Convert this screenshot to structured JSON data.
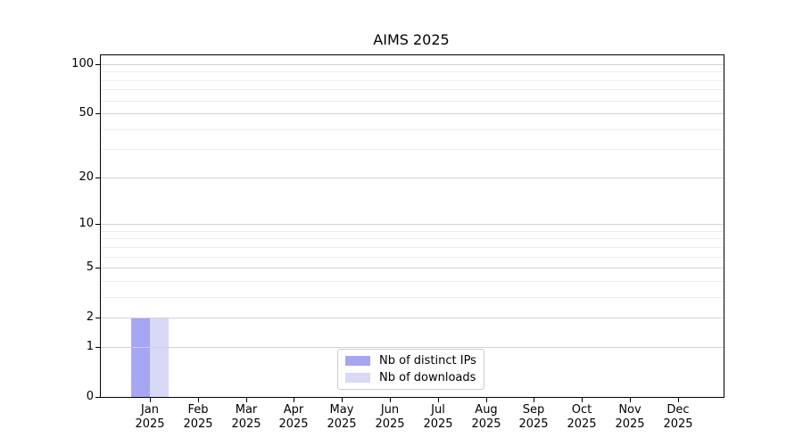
{
  "chart_data": {
    "type": "bar",
    "title": "AIMS 2025",
    "categories": [
      "Jan",
      "Feb",
      "Mar",
      "Apr",
      "May",
      "Jun",
      "Jul",
      "Aug",
      "Sep",
      "Oct",
      "Nov",
      "Dec"
    ],
    "x_tick_year_line": "2025",
    "series": [
      {
        "name": "Nb of distinct IPs",
        "color": "#a6a6f2",
        "values": [
          2,
          0,
          0,
          0,
          0,
          0,
          0,
          0,
          0,
          0,
          0,
          0
        ]
      },
      {
        "name": "Nb of downloads",
        "color": "#d8d8f7",
        "values": [
          2,
          0,
          0,
          0,
          0,
          0,
          0,
          0,
          0,
          0,
          0,
          0
        ]
      }
    ],
    "y_scale": "log1p",
    "ylim": [
      0,
      113
    ],
    "y_major_ticks": [
      0,
      1,
      2,
      5,
      10,
      20,
      50,
      100
    ],
    "y_minor_ticks": [
      3,
      4,
      6,
      7,
      8,
      9,
      30,
      40,
      60,
      70,
      80,
      90
    ],
    "grid": "on",
    "legend_position": "lower center"
  },
  "colors": {
    "axis": "#000000",
    "major_grid": "#d2d2d2",
    "minor_grid": "#ededed",
    "legend_border": "#cccccc",
    "background": "#ffffff"
  }
}
